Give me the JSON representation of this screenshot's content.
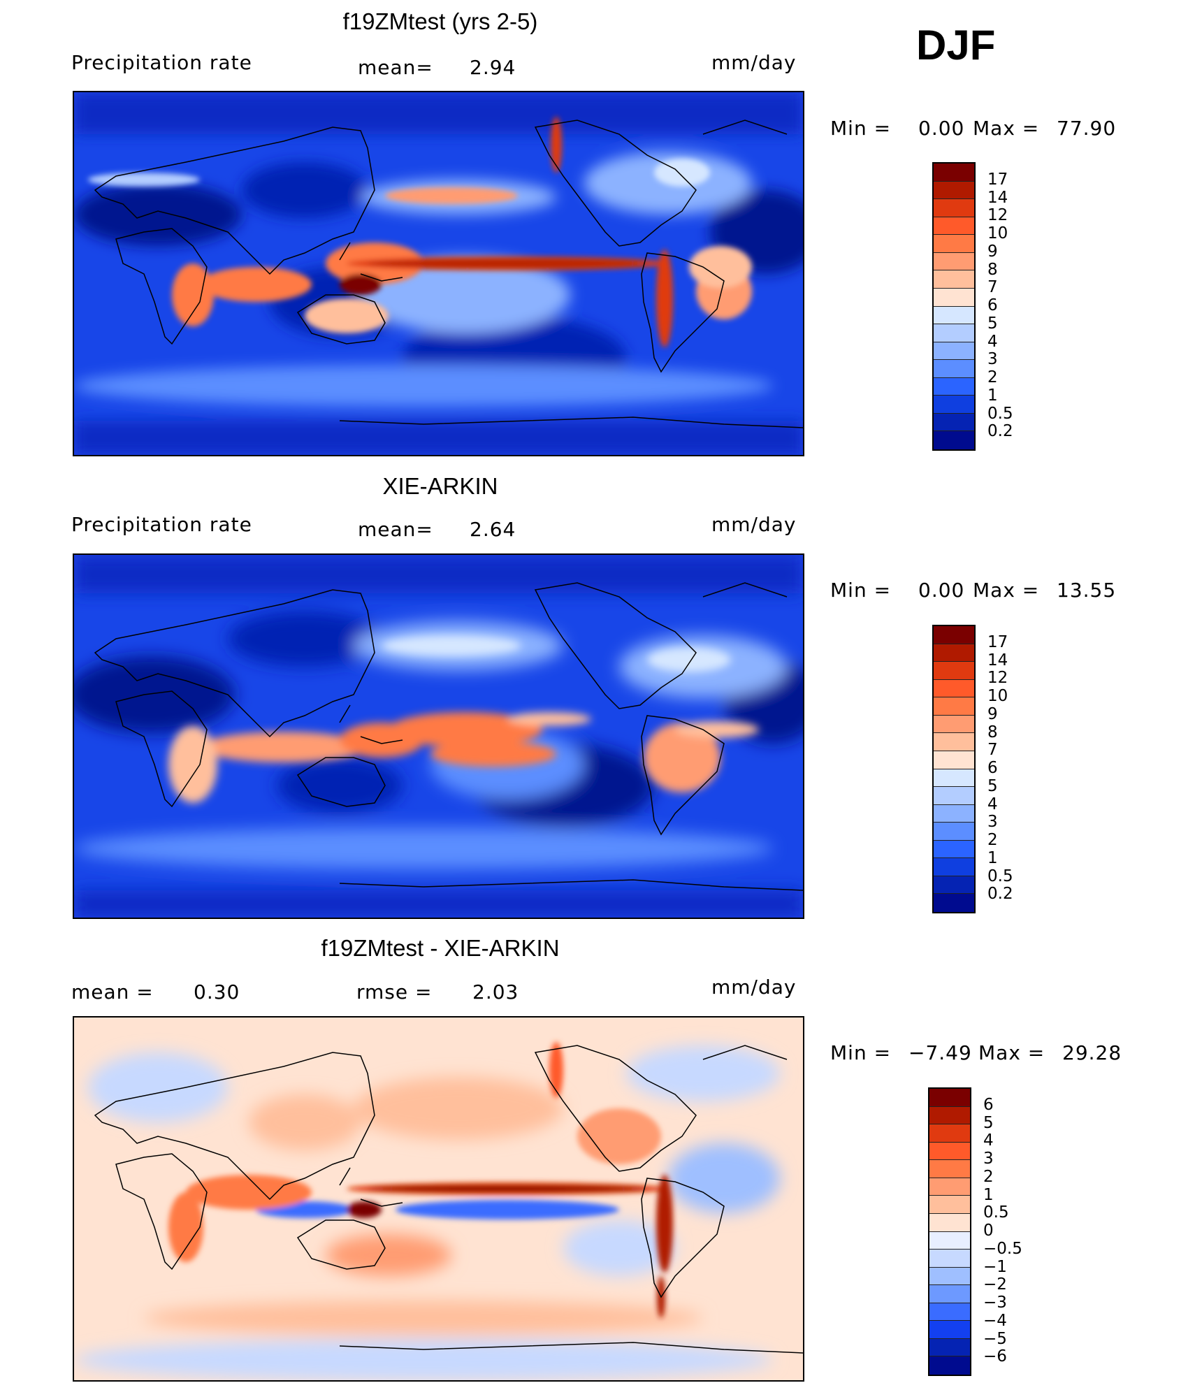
{
  "season": "DJF",
  "panels": [
    {
      "title": "f19ZMtest (yrs 2-5)",
      "left_label": "Precipitation  rate",
      "mean_label": "mean=",
      "mean_value": "2.94",
      "units": "mm/day",
      "min_label": "Min  =",
      "min_value": "0.00",
      "max_label": "Max  =",
      "max_value": "77.90"
    },
    {
      "title": "XIE-ARKIN",
      "left_label": "Precipitation  rate",
      "mean_label": "mean=",
      "mean_value": "2.64",
      "units": "mm/day",
      "min_label": "Min  =",
      "min_value": "0.00",
      "max_label": "Max  =",
      "max_value": "13.55"
    },
    {
      "title": "f19ZMtest - XIE-ARKIN",
      "left_label": "mean  =",
      "left_value": "0.30",
      "mid_label": "rmse  =",
      "mid_value": "2.03",
      "units": "mm/day",
      "min_label": "Min  =",
      "min_value": "−7.49",
      "max_label": "Max  =",
      "max_value": "29.28"
    }
  ],
  "colorbar_precip": {
    "labels": [
      "17",
      "14",
      "12",
      "10",
      "9",
      "8",
      "7",
      "6",
      "5",
      "4",
      "3",
      "2",
      "1",
      "0.5",
      "0.2"
    ],
    "colors": [
      "#7a0000",
      "#b01a00",
      "#e03a10",
      "#ff5a2a",
      "#ff7a45",
      "#ff9c72",
      "#ffbf9c",
      "#ffe3d2",
      "#d6e7ff",
      "#b3cdff",
      "#8cb2ff",
      "#5c8eff",
      "#2b64ff",
      "#0f3fe0",
      "#0523b3",
      "#000b8f"
    ]
  },
  "colorbar_diff": {
    "labels": [
      "6",
      "5",
      "4",
      "3",
      "2",
      "1",
      "0.5",
      "0",
      "−0.5",
      "−1",
      "−2",
      "−3",
      "−4",
      "−5",
      "−6"
    ],
    "colors": [
      "#7a0000",
      "#b01a00",
      "#e03a10",
      "#ff5a2a",
      "#ff7a45",
      "#ff9c72",
      "#ffbf9c",
      "#ffe3d2",
      "#e8efff",
      "#c7d9ff",
      "#9fbfff",
      "#6d99ff",
      "#3a6cff",
      "#1340f0",
      "#0523b3",
      "#000b8f"
    ]
  }
}
